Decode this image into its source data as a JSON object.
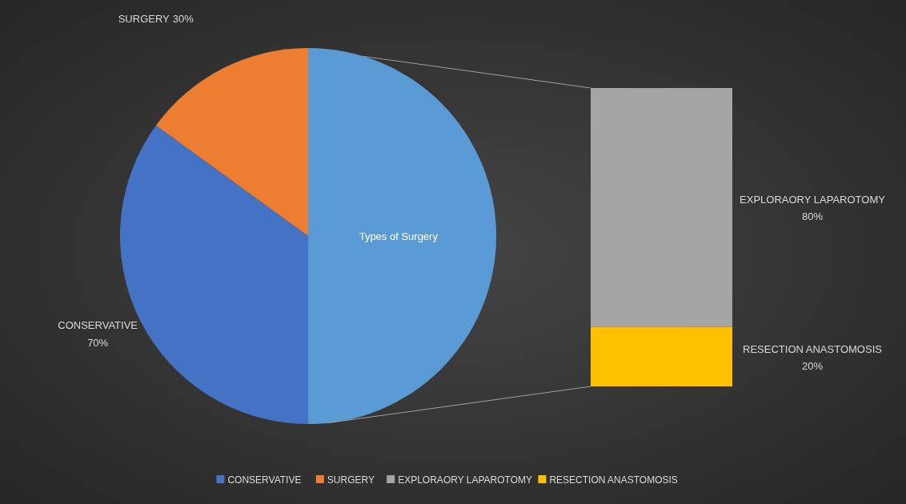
{
  "chart_data": {
    "type": "other",
    "categories": [
      "CONSERVATIVE",
      "SURGERY",
      "EXPLORAORY LAPAROTOMY",
      "RESECTION ANASTOMOSIS"
    ],
    "values": [
      70,
      30,
      80,
      20
    ],
    "colors": [
      "#4472c4",
      "#ed7d31",
      "#a5a5a5",
      "#ffc000"
    ],
    "value_labels": [
      "70%",
      "30%",
      "80%",
      "20%"
    ],
    "annotations": [
      "Types of Surgery"
    ]
  }
}
